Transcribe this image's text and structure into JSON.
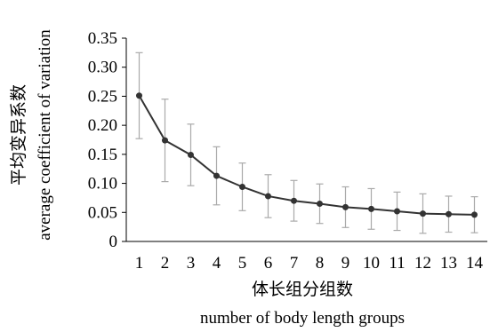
{
  "chart_data": {
    "type": "line",
    "x": [
      1,
      2,
      3,
      4,
      5,
      6,
      7,
      8,
      9,
      10,
      11,
      12,
      13,
      14
    ],
    "series": [
      {
        "values": [
          0.251,
          0.174,
          0.149,
          0.113,
          0.094,
          0.078,
          0.07,
          0.065,
          0.059,
          0.056,
          0.052,
          0.048,
          0.047,
          0.046
        ],
        "error": [
          0.074,
          0.071,
          0.053,
          0.05,
          0.041,
          0.037,
          0.035,
          0.034,
          0.035,
          0.035,
          0.033,
          0.034,
          0.031,
          0.031
        ]
      }
    ],
    "xlabel_cn": "体长组分组数",
    "xlabel_en": "number of body length groups",
    "ylabel_cn": "平均变异系数",
    "ylabel_en": "average coefficient of variation",
    "xticks": [
      "1",
      "2",
      "3",
      "4",
      "5",
      "6",
      "7",
      "8",
      "9",
      "10",
      "11",
      "12",
      "13",
      "14"
    ],
    "yticks": [
      "0",
      "0.05",
      "0.10",
      "0.15",
      "0.20",
      "0.25",
      "0.30",
      "0.35"
    ],
    "ylim": [
      0,
      0.35
    ],
    "xlim": [
      0.5,
      14.5
    ],
    "grid": false,
    "color": "#333333"
  }
}
